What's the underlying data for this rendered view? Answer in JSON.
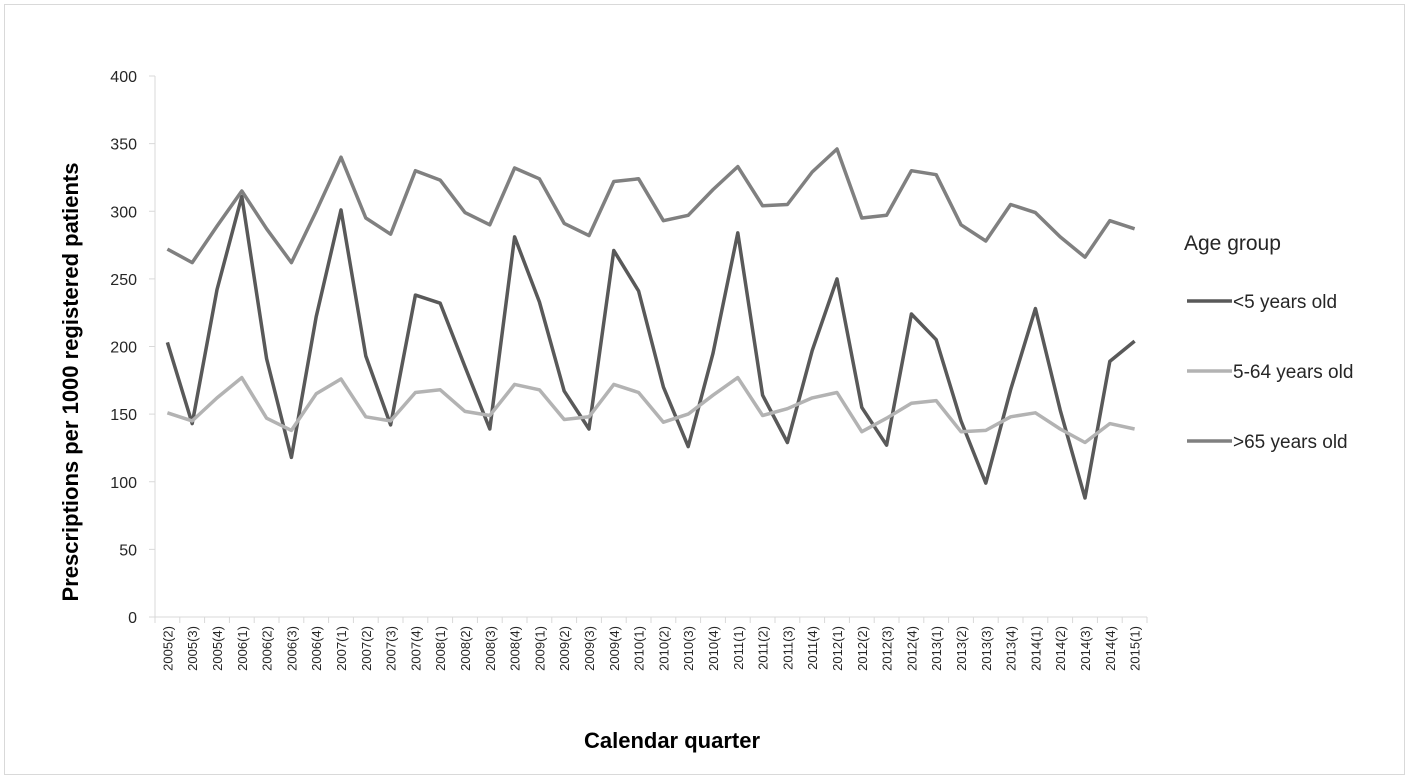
{
  "chart_data": {
    "type": "line",
    "xlabel": "Calendar quarter",
    "ylabel": "Prescriptions per 1000 registered patients",
    "ylim": [
      0,
      400
    ],
    "yticks": [
      0,
      50,
      100,
      150,
      200,
      250,
      300,
      350,
      400
    ],
    "grid": false,
    "legend_title": "Age group",
    "legend_position": "right",
    "categories": [
      "2005(2)",
      "2005(3)",
      "2005(4)",
      "2006(1)",
      "2006(2)",
      "2006(3)",
      "2006(4)",
      "2007(1)",
      "2007(2)",
      "2007(3)",
      "2007(4)",
      "2008(1)",
      "2008(2)",
      "2008(3)",
      "2008(4)",
      "2009(1)",
      "2009(2)",
      "2009(3)",
      "2009(4)",
      "2010(1)",
      "2010(2)",
      "2010(3)",
      "2010(4)",
      "2011(1)",
      "2011(2)",
      "2011(3)",
      "2011(4)",
      "2012(1)",
      "2012(2)",
      "2012(3)",
      "2012(4)",
      "2013(1)",
      "2013(2)",
      "2013(3)",
      "2013(4)",
      "2014(1)",
      "2014(2)",
      "2014(3)",
      "2014(4)",
      "2015(1)"
    ],
    "series": [
      {
        "name": "<5 years old",
        "color": "#595959",
        "values": [
          203,
          143,
          242,
          311,
          191,
          118,
          222,
          301,
          193,
          142,
          238,
          232,
          185,
          139,
          281,
          233,
          167,
          139,
          271,
          241,
          170,
          126,
          195,
          284,
          164,
          129,
          197,
          250,
          155,
          127,
          224,
          205,
          145,
          99,
          168,
          228,
          153,
          88,
          189,
          204
        ]
      },
      {
        "name": "5-64 years old",
        "color": "#b3b3b3",
        "values": [
          151,
          145,
          162,
          177,
          147,
          138,
          165,
          176,
          148,
          145,
          166,
          168,
          152,
          149,
          172,
          168,
          146,
          148,
          172,
          166,
          144,
          150,
          164,
          177,
          149,
          154,
          162,
          166,
          137,
          147,
          158,
          160,
          137,
          138,
          148,
          151,
          139,
          129,
          143,
          139
        ]
      },
      {
        "name": ">65 years old",
        "color": "#808080",
        "values": [
          272,
          262,
          289,
          315,
          287,
          262,
          300,
          340,
          295,
          283,
          330,
          323,
          299,
          290,
          332,
          324,
          291,
          282,
          322,
          324,
          293,
          297,
          316,
          333,
          304,
          305,
          329,
          346,
          295,
          297,
          330,
          327,
          290,
          278,
          305,
          299,
          281,
          266,
          293,
          287
        ]
      }
    ]
  }
}
